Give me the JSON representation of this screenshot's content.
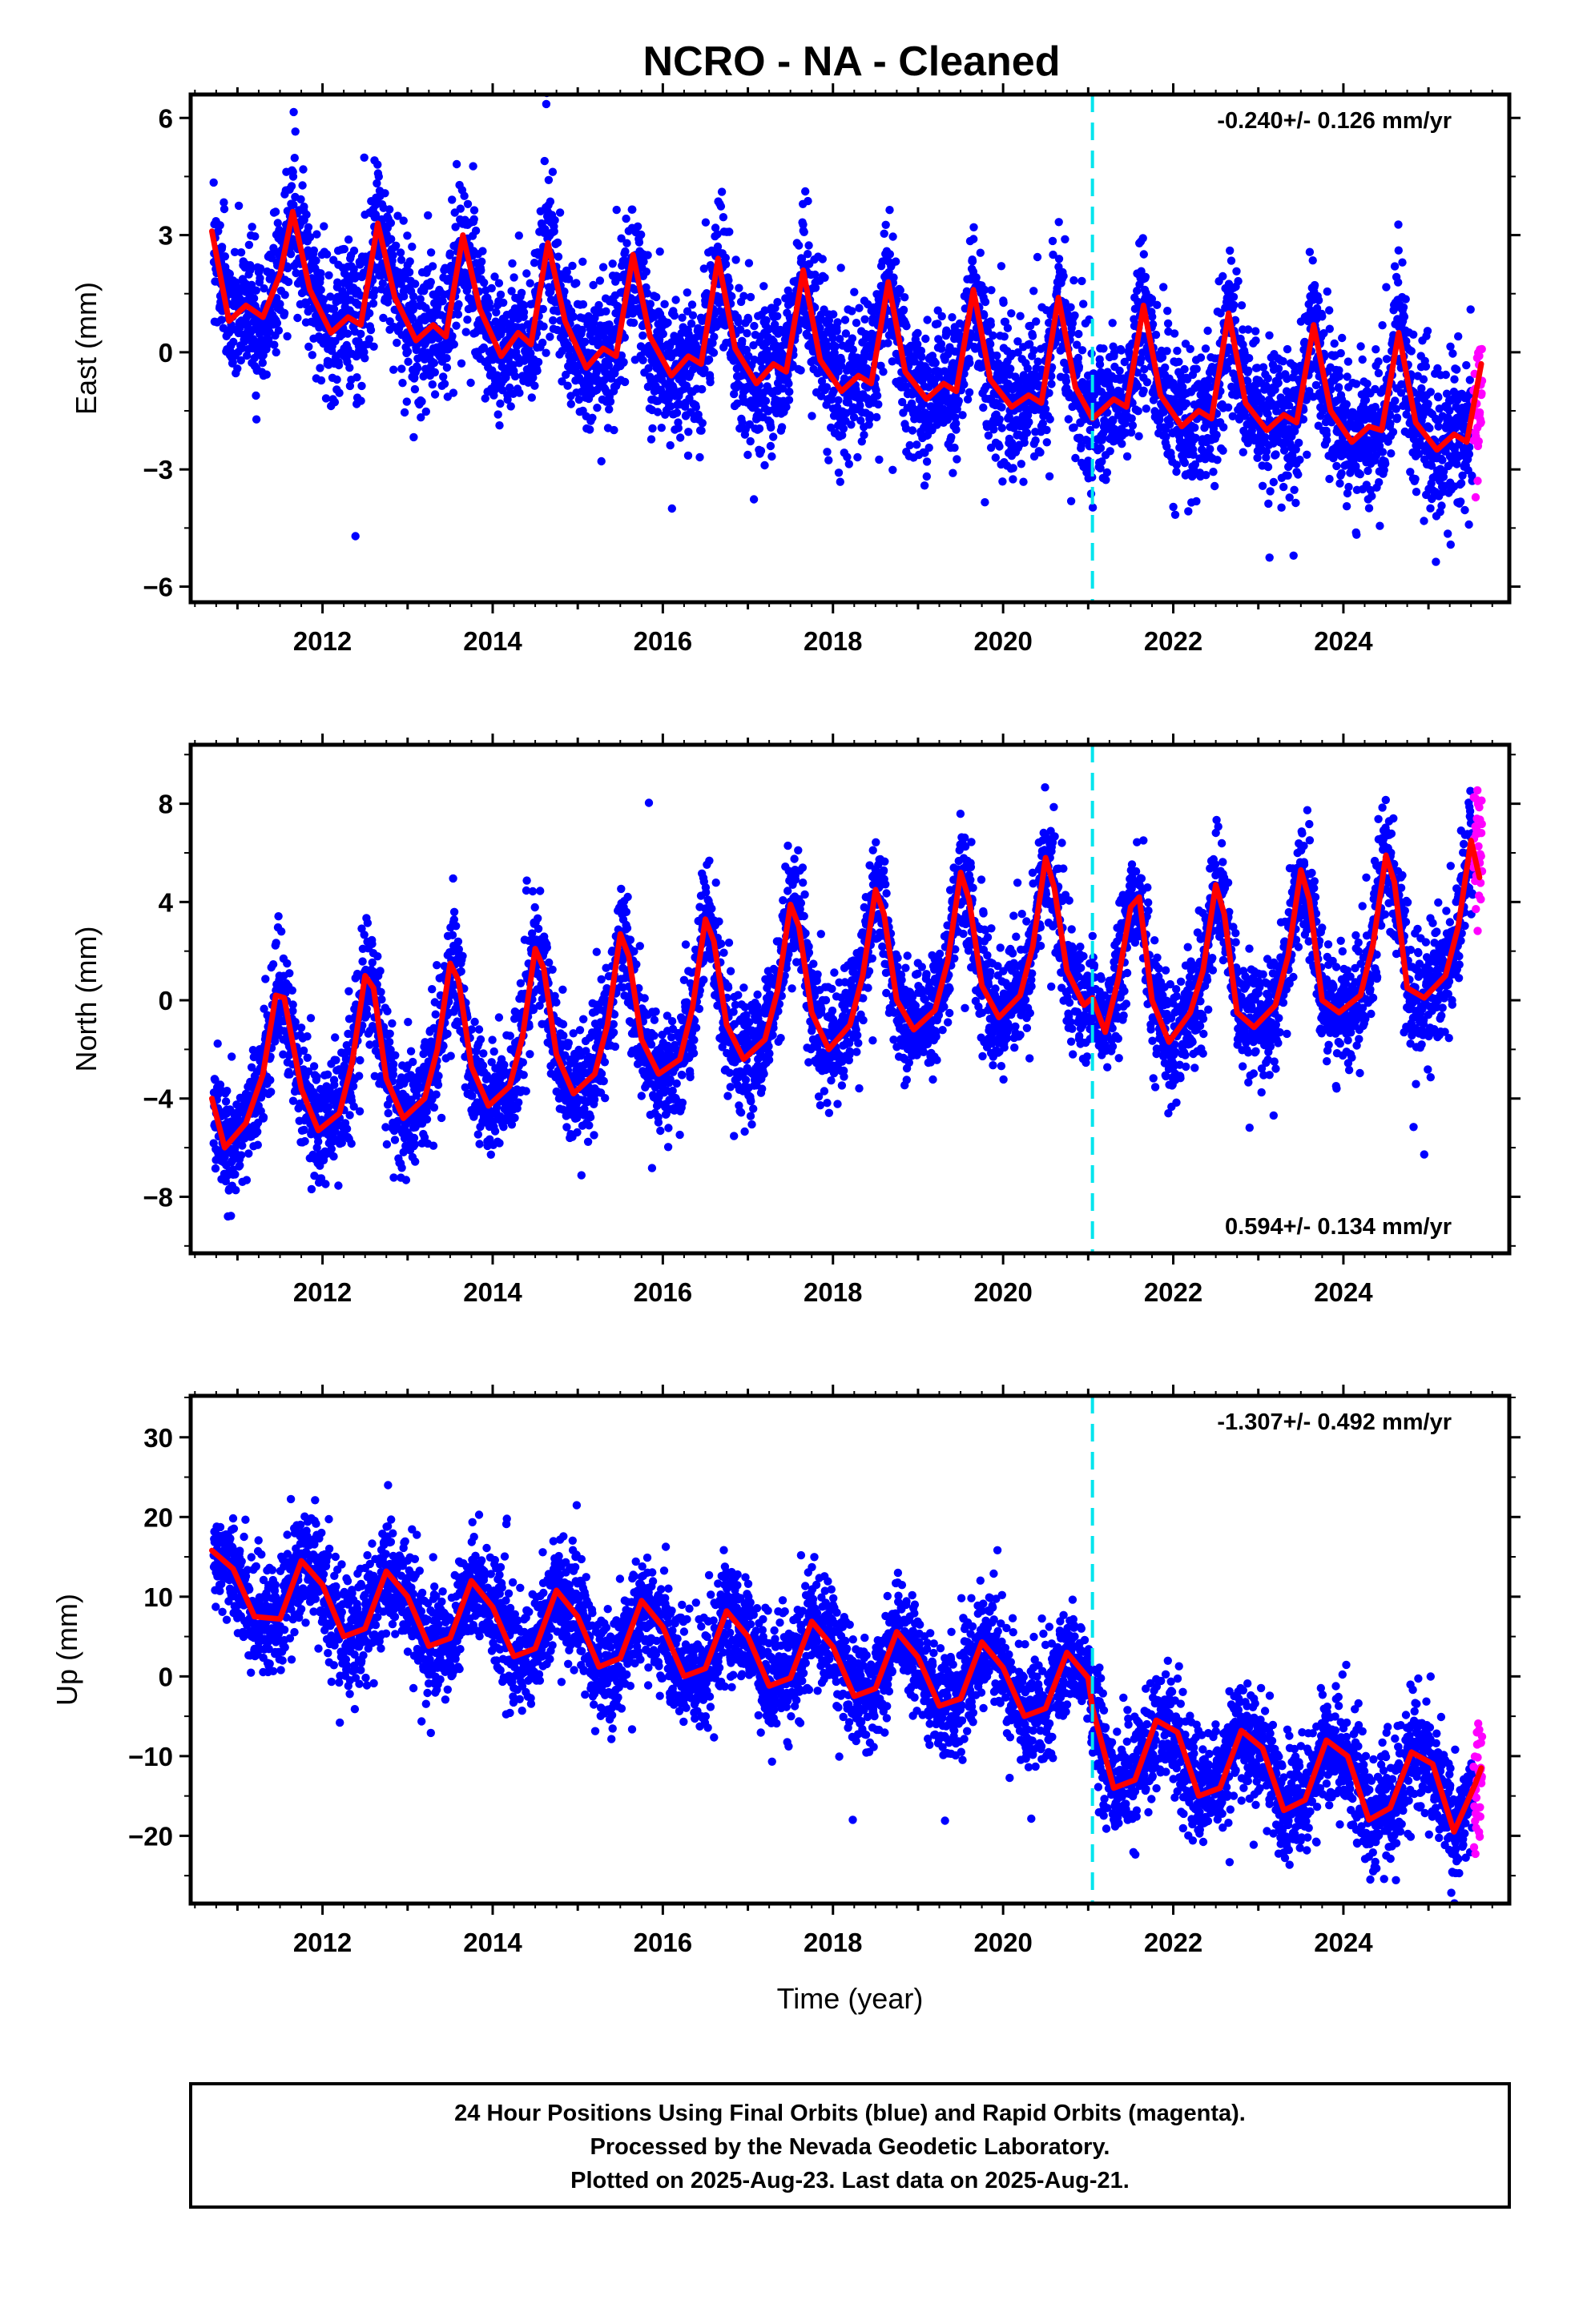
{
  "title": "NCRO  - NA - Cleaned",
  "colors": {
    "final_points": "#0000ff",
    "rapid_points": "#ff00ff",
    "model": "#ff0000",
    "break_line": "#00e5ee",
    "frame": "#000000"
  },
  "chart_data": [
    {
      "type": "scatter",
      "ylabel": "East (mm)",
      "xlabel": "",
      "xlim": [
        2010.45,
        2025.95
      ],
      "ylim": [
        -6.4,
        6.6
      ],
      "yticks": [
        -6,
        -3,
        0,
        3,
        6
      ],
      "xticks": [
        2012,
        2014,
        2016,
        2018,
        2020,
        2022,
        2024
      ],
      "tick_labels_x": [
        "2012",
        "2014",
        "2016",
        "2018",
        "2020",
        "2022",
        "2024"
      ],
      "tick_labels_y": [
        "−6",
        "−3",
        "0",
        "3",
        "6"
      ],
      "rate_text": "-0.240+/- 0.126 mm/yr",
      "rate_position": "top-right",
      "break_epoch": 2021.05,
      "final_orbits": {
        "color": "blue",
        "x_start": 2010.72,
        "x_end": 2025.52,
        "approx_count": 5300
      },
      "rapid_orbits": {
        "color": "magenta",
        "x_start": 2025.53,
        "x_end": 2025.63
      },
      "model": {
        "x": [
          2010.7,
          2010.9,
          2011.1,
          2011.3,
          2011.5,
          2011.65,
          2011.85,
          2012.1,
          2012.3,
          2012.45,
          2012.65,
          2012.85,
          2013.1,
          2013.3,
          2013.45,
          2013.65,
          2013.85,
          2014.1,
          2014.3,
          2014.45,
          2014.65,
          2014.85,
          2015.1,
          2015.3,
          2015.45,
          2015.65,
          2015.85,
          2016.1,
          2016.3,
          2016.45,
          2016.65,
          2016.85,
          2017.1,
          2017.3,
          2017.45,
          2017.65,
          2017.85,
          2018.1,
          2018.3,
          2018.45,
          2018.65,
          2018.85,
          2019.1,
          2019.3,
          2019.45,
          2019.65,
          2019.85,
          2020.1,
          2020.3,
          2020.45,
          2020.65,
          2020.85,
          2021.05,
          2021.3,
          2021.45,
          2021.65,
          2021.85,
          2022.1,
          2022.3,
          2022.45,
          2022.65,
          2022.85,
          2023.1,
          2023.3,
          2023.45,
          2023.65,
          2023.85,
          2024.1,
          2024.3,
          2024.45,
          2024.65,
          2024.85,
          2025.1,
          2025.3,
          2025.45,
          2025.62
        ],
        "y": [
          3.1,
          0.8,
          1.2,
          0.9,
          2.0,
          3.6,
          1.6,
          0.5,
          0.9,
          0.7,
          3.3,
          1.4,
          0.3,
          0.7,
          0.4,
          3.0,
          1.1,
          -0.1,
          0.5,
          0.2,
          2.8,
          0.8,
          -0.4,
          0.1,
          -0.1,
          2.5,
          0.4,
          -0.6,
          -0.1,
          -0.3,
          2.4,
          0.1,
          -0.8,
          -0.3,
          -0.5,
          2.1,
          -0.2,
          -1.0,
          -0.6,
          -0.8,
          1.8,
          -0.5,
          -1.2,
          -0.8,
          -1.0,
          1.6,
          -0.7,
          -1.4,
          -1.1,
          -1.3,
          1.4,
          -0.9,
          -1.7,
          -1.2,
          -1.4,
          1.2,
          -1.1,
          -1.9,
          -1.5,
          -1.7,
          1.0,
          -1.3,
          -2.0,
          -1.6,
          -1.8,
          0.7,
          -1.5,
          -2.3,
          -1.9,
          -2.0,
          0.5,
          -1.8,
          -2.5,
          -2.1,
          -2.3,
          -0.3
        ]
      }
    },
    {
      "type": "scatter",
      "ylabel": "North (mm)",
      "xlabel": "",
      "xlim": [
        2010.45,
        2025.95
      ],
      "ylim": [
        -10.3,
        10.4
      ],
      "yticks": [
        -8,
        -4,
        0,
        4,
        8
      ],
      "xticks": [
        2012,
        2014,
        2016,
        2018,
        2020,
        2022,
        2024
      ],
      "tick_labels_x": [
        "2012",
        "2014",
        "2016",
        "2018",
        "2020",
        "2022",
        "2024"
      ],
      "tick_labels_y": [
        "−8",
        "−4",
        "0",
        "4",
        "8"
      ],
      "rate_text": "0.594+/- 0.134 mm/yr",
      "rate_position": "bottom-right",
      "break_epoch": 2021.05,
      "final_orbits": {
        "color": "blue",
        "x_start": 2010.72,
        "x_end": 2025.52,
        "approx_count": 5300
      },
      "rapid_orbits": {
        "color": "magenta",
        "x_start": 2025.53,
        "x_end": 2025.63
      },
      "model": {
        "x": [
          2010.7,
          2010.85,
          2011.1,
          2011.3,
          2011.45,
          2011.55,
          2011.75,
          2011.95,
          2012.2,
          2012.35,
          2012.5,
          2012.6,
          2012.75,
          2012.95,
          2013.2,
          2013.35,
          2013.5,
          2013.6,
          2013.75,
          2013.95,
          2014.2,
          2014.35,
          2014.5,
          2014.6,
          2014.75,
          2014.95,
          2015.2,
          2015.35,
          2015.5,
          2015.6,
          2015.75,
          2015.95,
          2016.2,
          2016.35,
          2016.5,
          2016.6,
          2016.75,
          2016.95,
          2017.2,
          2017.35,
          2017.5,
          2017.6,
          2017.75,
          2017.95,
          2018.2,
          2018.35,
          2018.5,
          2018.6,
          2018.75,
          2018.95,
          2019.2,
          2019.35,
          2019.5,
          2019.6,
          2019.75,
          2019.95,
          2020.2,
          2020.35,
          2020.5,
          2020.6,
          2020.75,
          2020.95,
          2021.05,
          2021.2,
          2021.35,
          2021.5,
          2021.6,
          2021.75,
          2021.95,
          2022.2,
          2022.35,
          2022.5,
          2022.6,
          2022.75,
          2022.95,
          2023.2,
          2023.35,
          2023.5,
          2023.6,
          2023.75,
          2023.95,
          2024.2,
          2024.35,
          2024.5,
          2024.6,
          2024.75,
          2024.95,
          2025.2,
          2025.35,
          2025.5,
          2025.6
        ],
        "y": [
          -4.0,
          -6.0,
          -5.0,
          -3.0,
          0.2,
          0.1,
          -3.6,
          -5.3,
          -4.6,
          -2.5,
          1.0,
          0.5,
          -3.2,
          -4.8,
          -4.0,
          -2.0,
          1.5,
          0.8,
          -2.7,
          -4.3,
          -3.5,
          -1.5,
          2.1,
          1.3,
          -2.2,
          -3.8,
          -3.0,
          -1.0,
          2.7,
          1.8,
          -1.6,
          -3.0,
          -2.4,
          -0.3,
          3.3,
          2.4,
          -1.0,
          -2.4,
          -1.6,
          0.4,
          3.9,
          3.0,
          -0.5,
          -2.0,
          -1.0,
          1.0,
          4.5,
          3.5,
          0.0,
          -1.2,
          -0.4,
          1.6,
          5.2,
          4.1,
          0.6,
          -0.7,
          0.2,
          2.2,
          5.8,
          4.6,
          1.2,
          -0.2,
          0.1,
          -1.3,
          0.8,
          3.8,
          4.2,
          0.0,
          -1.7,
          -0.5,
          1.2,
          4.7,
          3.5,
          -0.5,
          -1.1,
          -0.2,
          1.8,
          5.3,
          4.1,
          0.0,
          -0.5,
          0.2,
          2.3,
          5.9,
          4.8,
          0.5,
          0.1,
          1.0,
          3.0,
          6.5,
          5.0
        ]
      }
    },
    {
      "type": "scatter",
      "ylabel": "Up (mm)",
      "xlabel": "Time (year)",
      "xlim": [
        2010.45,
        2025.95
      ],
      "ylim": [
        -28.5,
        35.2
      ],
      "yticks": [
        -20,
        -10,
        0,
        10,
        20,
        30
      ],
      "xticks": [
        2012,
        2014,
        2016,
        2018,
        2020,
        2022,
        2024
      ],
      "tick_labels_x": [
        "2012",
        "2014",
        "2016",
        "2018",
        "2020",
        "2022",
        "2024"
      ],
      "tick_labels_y": [
        "−20",
        "−10",
        "0",
        "10",
        "20",
        "30"
      ],
      "rate_text": "-1.307+/- 0.492 mm/yr",
      "rate_position": "top-right",
      "break_epoch": 2021.05,
      "final_orbits": {
        "color": "blue",
        "x_start": 2010.72,
        "x_end": 2025.52,
        "approx_count": 5300
      },
      "rapid_orbits": {
        "color": "magenta",
        "x_start": 2025.53,
        "x_end": 2025.63
      },
      "model": {
        "x": [
          2010.7,
          2010.95,
          2011.2,
          2011.5,
          2011.75,
          2012.0,
          2012.25,
          2012.5,
          2012.75,
          2013.0,
          2013.25,
          2013.5,
          2013.75,
          2014.0,
          2014.25,
          2014.5,
          2014.75,
          2015.0,
          2015.25,
          2015.5,
          2015.75,
          2016.0,
          2016.25,
          2016.5,
          2016.75,
          2017.0,
          2017.25,
          2017.5,
          2017.75,
          2018.0,
          2018.25,
          2018.5,
          2018.75,
          2019.0,
          2019.25,
          2019.5,
          2019.75,
          2020.0,
          2020.25,
          2020.5,
          2020.75,
          2021.0,
          2021.05,
          2021.3,
          2021.55,
          2021.8,
          2022.05,
          2022.3,
          2022.55,
          2022.8,
          2023.05,
          2023.3,
          2023.55,
          2023.8,
          2024.05,
          2024.3,
          2024.55,
          2024.8,
          2025.05,
          2025.3,
          2025.55,
          2025.62
        ],
        "y": [
          15.8,
          13.5,
          7.5,
          7.2,
          14.5,
          11.5,
          5.0,
          6.0,
          13.2,
          10.0,
          3.8,
          4.8,
          12.0,
          8.7,
          2.5,
          3.5,
          10.8,
          7.5,
          1.2,
          2.3,
          9.5,
          6.2,
          0.0,
          1.0,
          8.2,
          5.0,
          -1.2,
          -0.2,
          6.9,
          3.7,
          -2.5,
          -1.5,
          5.6,
          2.4,
          -3.7,
          -2.8,
          4.3,
          1.1,
          -5.0,
          -4.0,
          3.0,
          -0.2,
          -4.0,
          -14.0,
          -13.0,
          -5.5,
          -7.0,
          -15.0,
          -14.0,
          -6.8,
          -9.0,
          -16.8,
          -15.5,
          -8.0,
          -10.0,
          -18.0,
          -16.5,
          -9.5,
          -11.0,
          -19.5,
          -13.5,
          -11.5
        ]
      }
    }
  ],
  "footer": {
    "line1": "24 Hour Positions Using Final Orbits (blue) and Rapid Orbits (magenta).",
    "line2": "Processed by the Nevada Geodetic Laboratory.",
    "line3": "Plotted on 2025-Aug-23. Last data on 2025-Aug-21."
  }
}
